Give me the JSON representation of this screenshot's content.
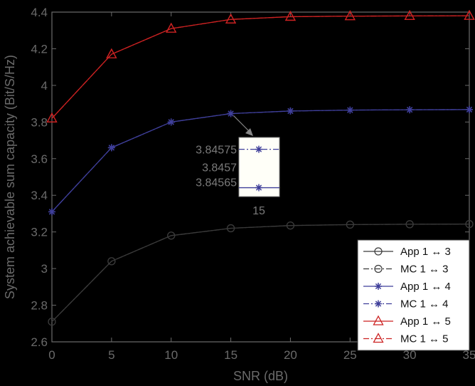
{
  "chart_data": {
    "type": "line",
    "title": "",
    "xlabel": "SNR (dB)",
    "ylabel": "System achievable sum capacity (Bit/S/Hz)",
    "xlim": [
      0,
      35
    ],
    "ylim": [
      2.6,
      4.4
    ],
    "xticks": [
      0,
      5,
      10,
      15,
      20,
      25,
      30,
      35
    ],
    "xtick_labels": [
      "0",
      "5",
      "10",
      "15",
      "20",
      "25",
      "30",
      "35"
    ],
    "yticks": [
      2.6,
      2.8,
      3.0,
      3.2,
      3.4,
      3.6,
      3.8,
      4.0,
      4.2,
      4.4
    ],
    "ytick_labels": [
      "2.6",
      "2.8",
      "3",
      "3.2",
      "3.4",
      "3.6",
      "3.8",
      "4",
      "4.2",
      "4.4"
    ],
    "grid": false,
    "legend_position": "bottom-right",
    "x": [
      0,
      5,
      10,
      15,
      20,
      25,
      30,
      35
    ],
    "series": [
      {
        "name": "App 1 ↔ 3",
        "color": "#3a3a3a",
        "dash": "solid",
        "marker": "circle",
        "values": [
          2.71,
          3.04,
          3.18,
          3.22,
          3.235,
          3.24,
          3.242,
          3.243
        ]
      },
      {
        "name": "MC 1 ↔ 3",
        "color": "#3a3a3a",
        "dash": "dashdot",
        "marker": "circle",
        "values": [
          2.71,
          3.04,
          3.18,
          3.22,
          3.235,
          3.24,
          3.242,
          3.243
        ]
      },
      {
        "name": "App 1 ↔ 4",
        "color": "#3f3f9a",
        "dash": "solid",
        "marker": "star",
        "values": [
          3.31,
          3.66,
          3.8,
          3.846,
          3.86,
          3.865,
          3.867,
          3.868
        ]
      },
      {
        "name": "MC 1 ↔ 4",
        "color": "#3f3f9a",
        "dash": "dashdot",
        "marker": "star",
        "values": [
          3.31,
          3.66,
          3.8,
          3.846,
          3.86,
          3.865,
          3.867,
          3.868
        ]
      },
      {
        "name": "App 1 ↔ 5",
        "color": "#cc2222",
        "dash": "solid",
        "marker": "triangle",
        "values": [
          3.82,
          4.17,
          4.31,
          4.36,
          4.375,
          4.378,
          4.379,
          4.38
        ]
      },
      {
        "name": "MC 1 ↔ 5",
        "color": "#cc2222",
        "dash": "dashdot",
        "marker": "triangle",
        "values": [
          3.82,
          4.17,
          4.31,
          4.36,
          4.375,
          4.378,
          4.379,
          4.38
        ]
      }
    ],
    "inset": {
      "x": 15,
      "x_label": "15",
      "ytick_labels": [
        "3.84575",
        "3.8457",
        "3.84565"
      ],
      "ylim": [
        3.8456,
        3.8458
      ],
      "app_value": 3.84563,
      "mc_value": 3.84576
    }
  },
  "colors": {
    "background": "#000000",
    "axis": "#6a6a6a",
    "legend_bg": "#ffffff",
    "inset_bg": "#fffff8"
  }
}
